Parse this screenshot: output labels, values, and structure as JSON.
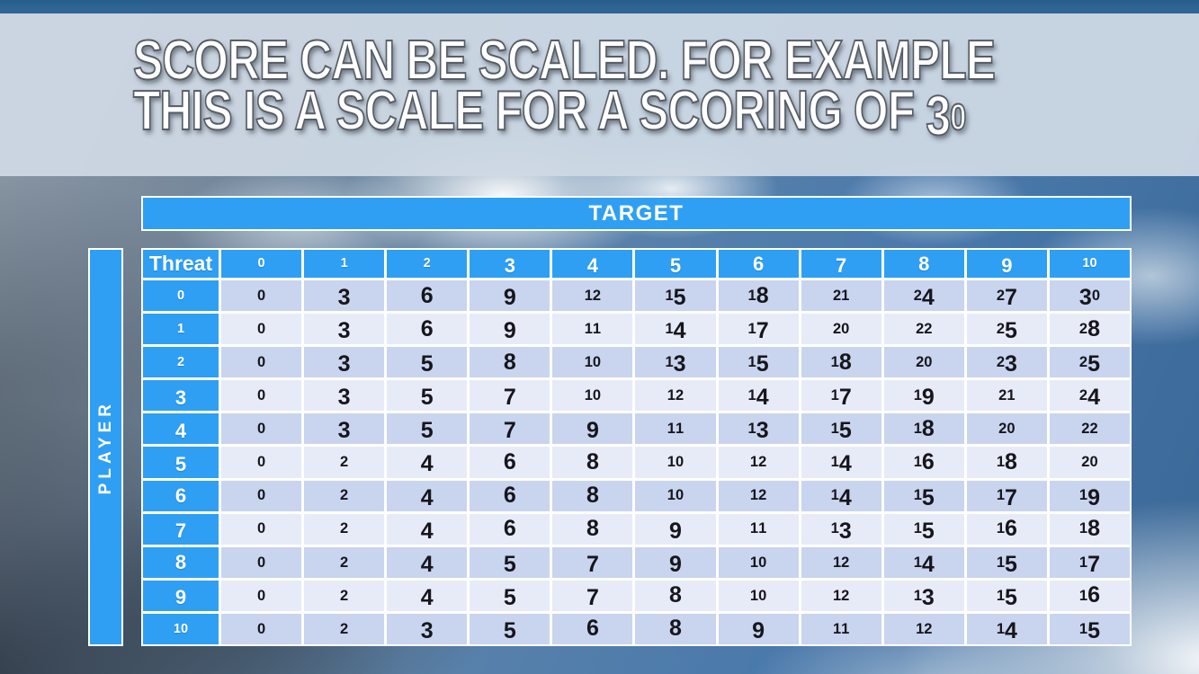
{
  "slide": {
    "title": {
      "line1": "SCORE CAN BE SCALED. FOR EXAMPLE",
      "line2": "THIS IS A SCALE FOR A SCORING OF 30"
    }
  },
  "matrix": {
    "target_label": "TARGET",
    "player_label": "PLAYER",
    "corner_label": "Threat",
    "column_headers": [
      "0",
      "1",
      "2",
      "3",
      "4",
      "5",
      "6",
      "7",
      "8",
      "9",
      "10"
    ],
    "row_headers": [
      "0",
      "1",
      "2",
      "3",
      "4",
      "5",
      "6",
      "7",
      "8",
      "9",
      "10"
    ],
    "rows": [
      [
        0,
        3,
        6,
        9,
        12,
        15,
        18,
        21,
        24,
        27,
        30
      ],
      [
        0,
        3,
        6,
        9,
        11,
        14,
        17,
        20,
        22,
        25,
        28
      ],
      [
        0,
        3,
        5,
        8,
        10,
        13,
        15,
        18,
        20,
        23,
        25
      ],
      [
        0,
        3,
        5,
        7,
        10,
        12,
        14,
        17,
        19,
        21,
        24
      ],
      [
        0,
        3,
        5,
        7,
        9,
        11,
        13,
        15,
        18,
        20,
        22
      ],
      [
        0,
        2,
        4,
        6,
        8,
        10,
        12,
        14,
        16,
        18,
        20
      ],
      [
        0,
        2,
        4,
        6,
        8,
        10,
        12,
        14,
        15,
        17,
        19
      ],
      [
        0,
        2,
        4,
        6,
        8,
        9,
        11,
        13,
        15,
        16,
        18
      ],
      [
        0,
        2,
        4,
        5,
        7,
        9,
        10,
        12,
        14,
        15,
        17
      ],
      [
        0,
        2,
        4,
        5,
        7,
        8,
        10,
        12,
        13,
        15,
        16
      ],
      [
        0,
        2,
        3,
        5,
        6,
        8,
        9,
        11,
        12,
        14,
        15
      ]
    ]
  },
  "colors": {
    "accent_blue": "#2F9FF3",
    "row_dark": "#C9D4EF",
    "row_light": "#E7EBF8",
    "cell_text": "#16161B",
    "top_bar": "#2E6594",
    "title_band": "#CED9E4",
    "title_fill": "#FFFFFF"
  }
}
